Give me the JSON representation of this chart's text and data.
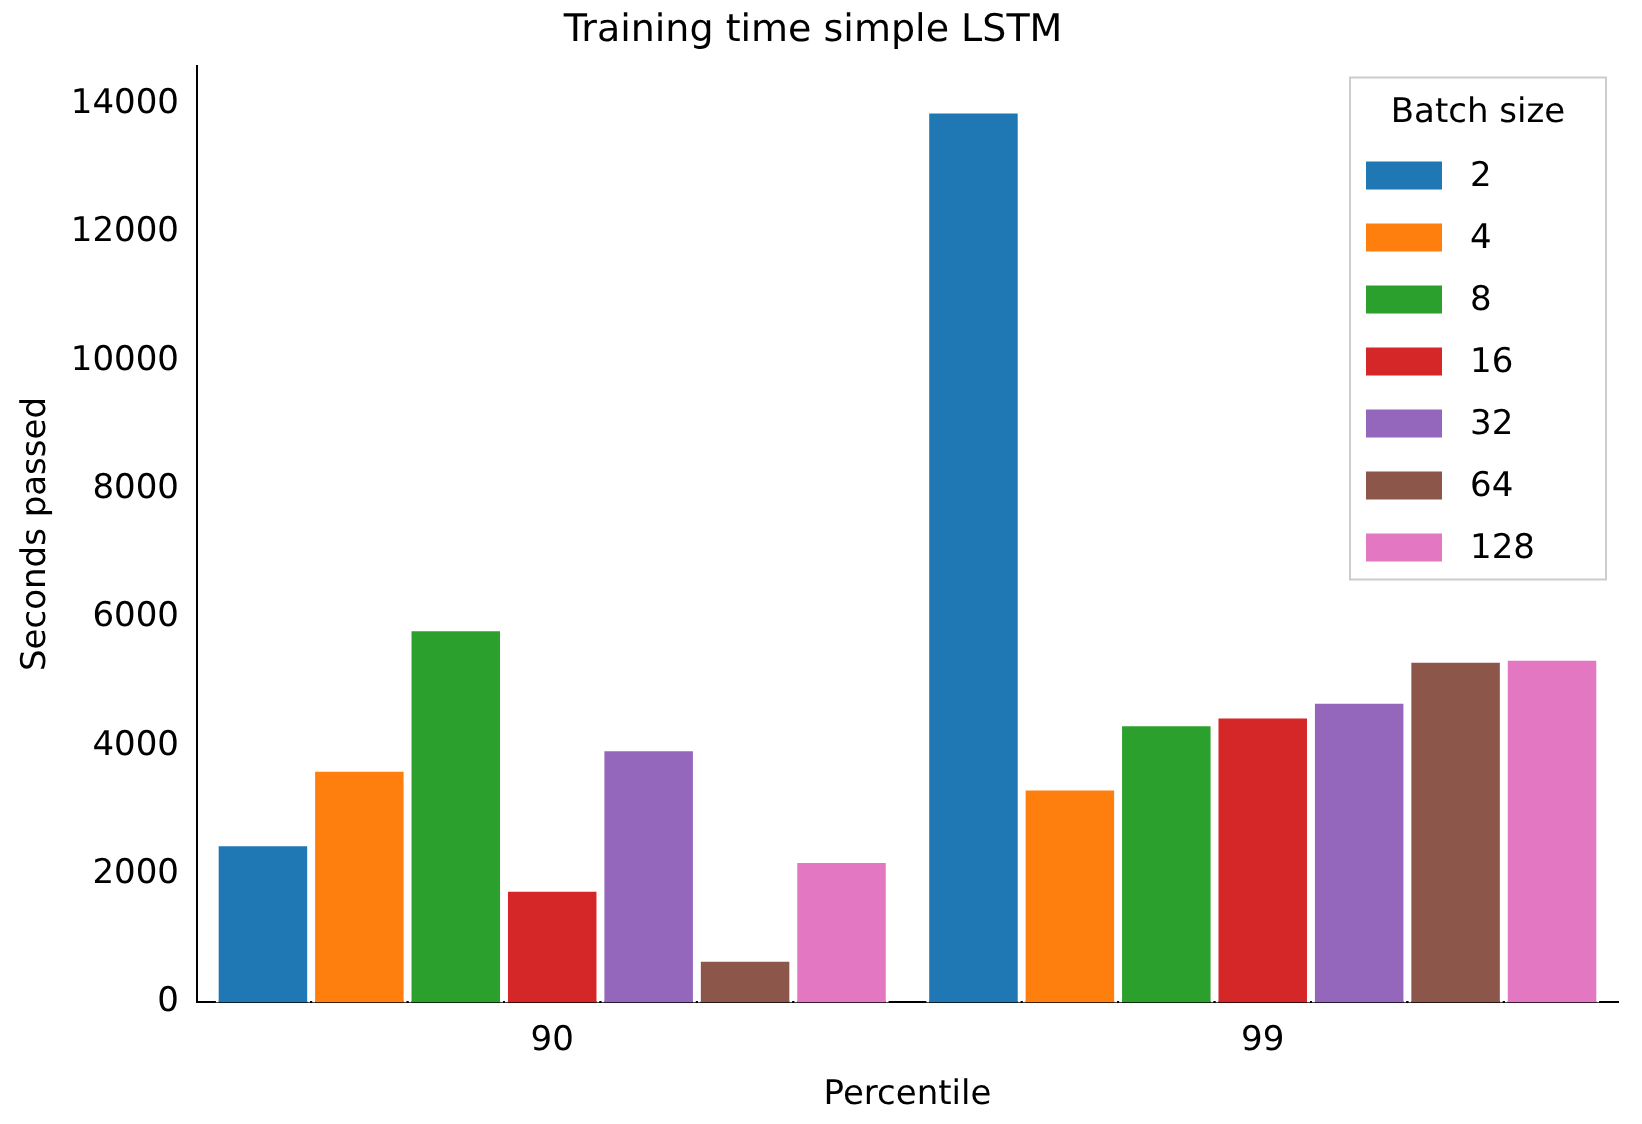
{
  "chart_data": {
    "type": "bar",
    "title": "Training time simple LSTM",
    "xlabel": "Percentile",
    "ylabel": "Seconds passed",
    "legend_title": "Batch size",
    "legend": "top right",
    "grid": false,
    "categories": [
      "90",
      "99"
    ],
    "ylim": [
      0,
      14600
    ],
    "yticks": [
      0,
      2000,
      4000,
      6000,
      8000,
      10000,
      12000,
      14000
    ],
    "series": [
      {
        "name": "2",
        "color": "#1f77b4",
        "values": [
          2480,
          13900
        ]
      },
      {
        "name": "4",
        "color": "#ff7f0e",
        "values": [
          3640,
          3350
        ]
      },
      {
        "name": "8",
        "color": "#2ca02c",
        "values": [
          5830,
          4350
        ]
      },
      {
        "name": "16",
        "color": "#d62728",
        "values": [
          1770,
          4470
        ]
      },
      {
        "name": "32",
        "color": "#9467bd",
        "values": [
          3960,
          4700
        ]
      },
      {
        "name": "64",
        "color": "#8c564b",
        "values": [
          680,
          5340
        ]
      },
      {
        "name": "128",
        "color": "#e377c2",
        "values": [
          2220,
          5370
        ]
      }
    ]
  }
}
